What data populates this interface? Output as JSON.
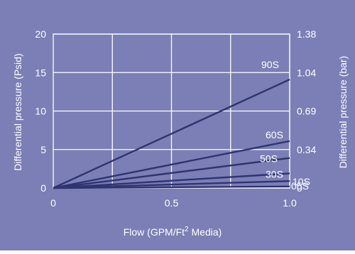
{
  "colors": {
    "background": "#7b7fb5",
    "grid": "#ffffff",
    "line": "#2f3470",
    "text": "#ffffff"
  },
  "chart_data": {
    "type": "line",
    "title": "",
    "xlabel_main": "Flow (GPM/Ft",
    "xlabel_sup": "2",
    "xlabel_tail": " Media)",
    "ylabel": "Differential pressure (Psid)",
    "y2label": "Differential pressure (bar)",
    "xlim": [
      0,
      1.0
    ],
    "ylim": [
      0,
      20
    ],
    "x_ticks": [
      {
        "value": 0,
        "label": "0"
      },
      {
        "value": 0.5,
        "label": "0.5"
      },
      {
        "value": 1.0,
        "label": "1.0"
      }
    ],
    "y_ticks": [
      {
        "value": 0,
        "label": "0"
      },
      {
        "value": 5,
        "label": "5"
      },
      {
        "value": 10,
        "label": "10"
      },
      {
        "value": 15,
        "label": "15"
      },
      {
        "value": 20,
        "label": "20"
      }
    ],
    "y2_ticks": [
      {
        "value": 20,
        "label": "1.38"
      },
      {
        "value": 15,
        "label": "1.04"
      },
      {
        "value": 10,
        "label": "0.69"
      },
      {
        "value": 5,
        "label": "0.34"
      },
      {
        "value": 0,
        "label": "0"
      }
    ],
    "x_grid": [
      0.25,
      0.5,
      0.75,
      1.0
    ],
    "y_grid": [
      0,
      5,
      10,
      15,
      20
    ],
    "grid": true,
    "series": [
      {
        "name": "90S",
        "x": [
          0,
          1.0
        ],
        "y": [
          0,
          14.1
        ]
      },
      {
        "name": "60S",
        "x": [
          0,
          1.0
        ],
        "y": [
          0,
          6.1
        ]
      },
      {
        "name": "50S",
        "x": [
          0,
          1.0
        ],
        "y": [
          0,
          3.9
        ]
      },
      {
        "name": "30S",
        "x": [
          0,
          1.0
        ],
        "y": [
          0,
          1.9
        ]
      },
      {
        "name": "10S",
        "x": [
          0,
          1.0
        ],
        "y": [
          0,
          0.9
        ]
      },
      {
        "name": "05S",
        "x": [
          0,
          1.0
        ],
        "y": [
          0,
          0.2
        ]
      }
    ]
  }
}
